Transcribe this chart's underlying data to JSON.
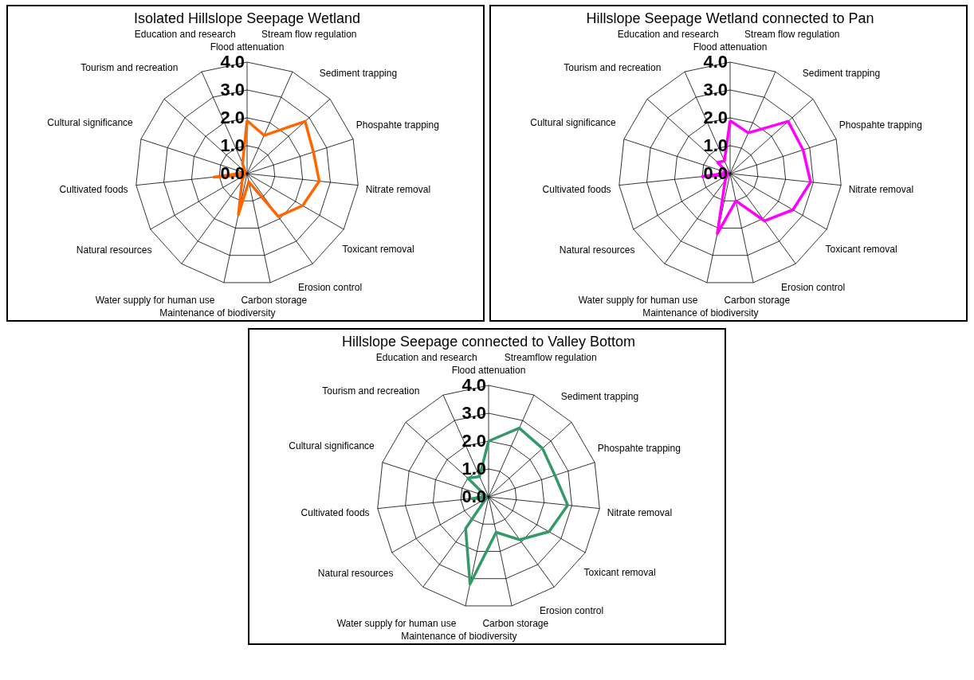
{
  "chart_data": [
    {
      "type": "radar",
      "title": "Isolated Hillslope  Seepage Wetland",
      "categories": [
        "Flood attenuation",
        "Stream flow regulation",
        "Sediment trapping",
        "Phospahte trapping",
        "Nitrate removal",
        "Toxicant removal",
        "Erosion control",
        "Carbon storage",
        "Maintenance of biodiversity",
        "Water supply for human use",
        "Natural resources",
        "Cultivated foods",
        "Cultural significance",
        "Tourism and recreation",
        "Education and research"
      ],
      "series": [
        {
          "color": "#ff6600",
          "values": [
            1.9,
            1.5,
            2.8,
            2.5,
            2.6,
            2.3,
            1.9,
            0.3,
            1.5,
            0.3,
            0.1,
            1.2,
            0.1,
            0.1,
            0.4
          ]
        }
      ],
      "ylim": [
        0,
        4
      ],
      "yticks": [
        {
          "value": 0,
          "label": "0.0"
        },
        {
          "value": 1,
          "label": "1.0"
        },
        {
          "value": 2,
          "label": "2.0"
        },
        {
          "value": 3,
          "label": "3.0"
        },
        {
          "value": 4,
          "label": "4.0"
        }
      ],
      "grid": true
    },
    {
      "type": "radar",
      "title": "Hillslope  Seepage Wetland connected to Pan",
      "categories": [
        "Flood attenuation",
        "Stream flow regulation",
        "Sediment trapping",
        "Phospahte trapping",
        "Nitrate removal",
        "Toxicant removal",
        "Erosion control",
        "Carbon storage",
        "Maintenance of biodiversity",
        "Water supply for human use",
        "Natural resources",
        "Cultivated foods",
        "Cultural significance",
        "Tourism and recreation",
        "Education and research"
      ],
      "series": [
        {
          "color": "#ff00ff",
          "values": [
            1.9,
            1.6,
            2.8,
            2.75,
            2.9,
            2.6,
            2.1,
            1.0,
            2.2,
            0.3,
            0.1,
            1.0,
            0.1,
            0.6,
            0.5
          ]
        }
      ],
      "ylim": [
        0,
        4
      ],
      "yticks": [
        {
          "value": 0,
          "label": "0.0"
        },
        {
          "value": 1,
          "label": "1.0"
        },
        {
          "value": 2,
          "label": "2.0"
        },
        {
          "value": 3,
          "label": "3.0"
        },
        {
          "value": 4,
          "label": "4.0"
        }
      ],
      "grid": true
    },
    {
      "type": "radar",
      "title": "Hillslope Seepage connected to Valley Bottom",
      "categories": [
        "Flood attenuation",
        "Streamflow regulation",
        "Sediment trapping",
        "Phospahte trapping",
        "Nitrate removal",
        "Toxicant removal",
        "Erosion control",
        "Carbon storage",
        "Maintenance of biodiversity",
        "Water supply for human use",
        "Natural resources",
        "Cultivated foods",
        "Cultural significance",
        "Tourism and recreation",
        "Education and research"
      ],
      "series": [
        {
          "color": "#339966",
          "values": [
            2.0,
            2.7,
            2.6,
            2.5,
            2.85,
            2.5,
            1.9,
            1.3,
            3.2,
            1.4,
            0.1,
            0.6,
            0.1,
            1.0,
            0.8
          ]
        }
      ],
      "ylim": [
        0,
        4
      ],
      "yticks": [
        {
          "value": 0,
          "label": "0.0"
        },
        {
          "value": 1,
          "label": "1.0"
        },
        {
          "value": 2,
          "label": "2.0"
        },
        {
          "value": 3,
          "label": "3.0"
        },
        {
          "value": 4,
          "label": "4.0"
        }
      ],
      "grid": true
    }
  ]
}
